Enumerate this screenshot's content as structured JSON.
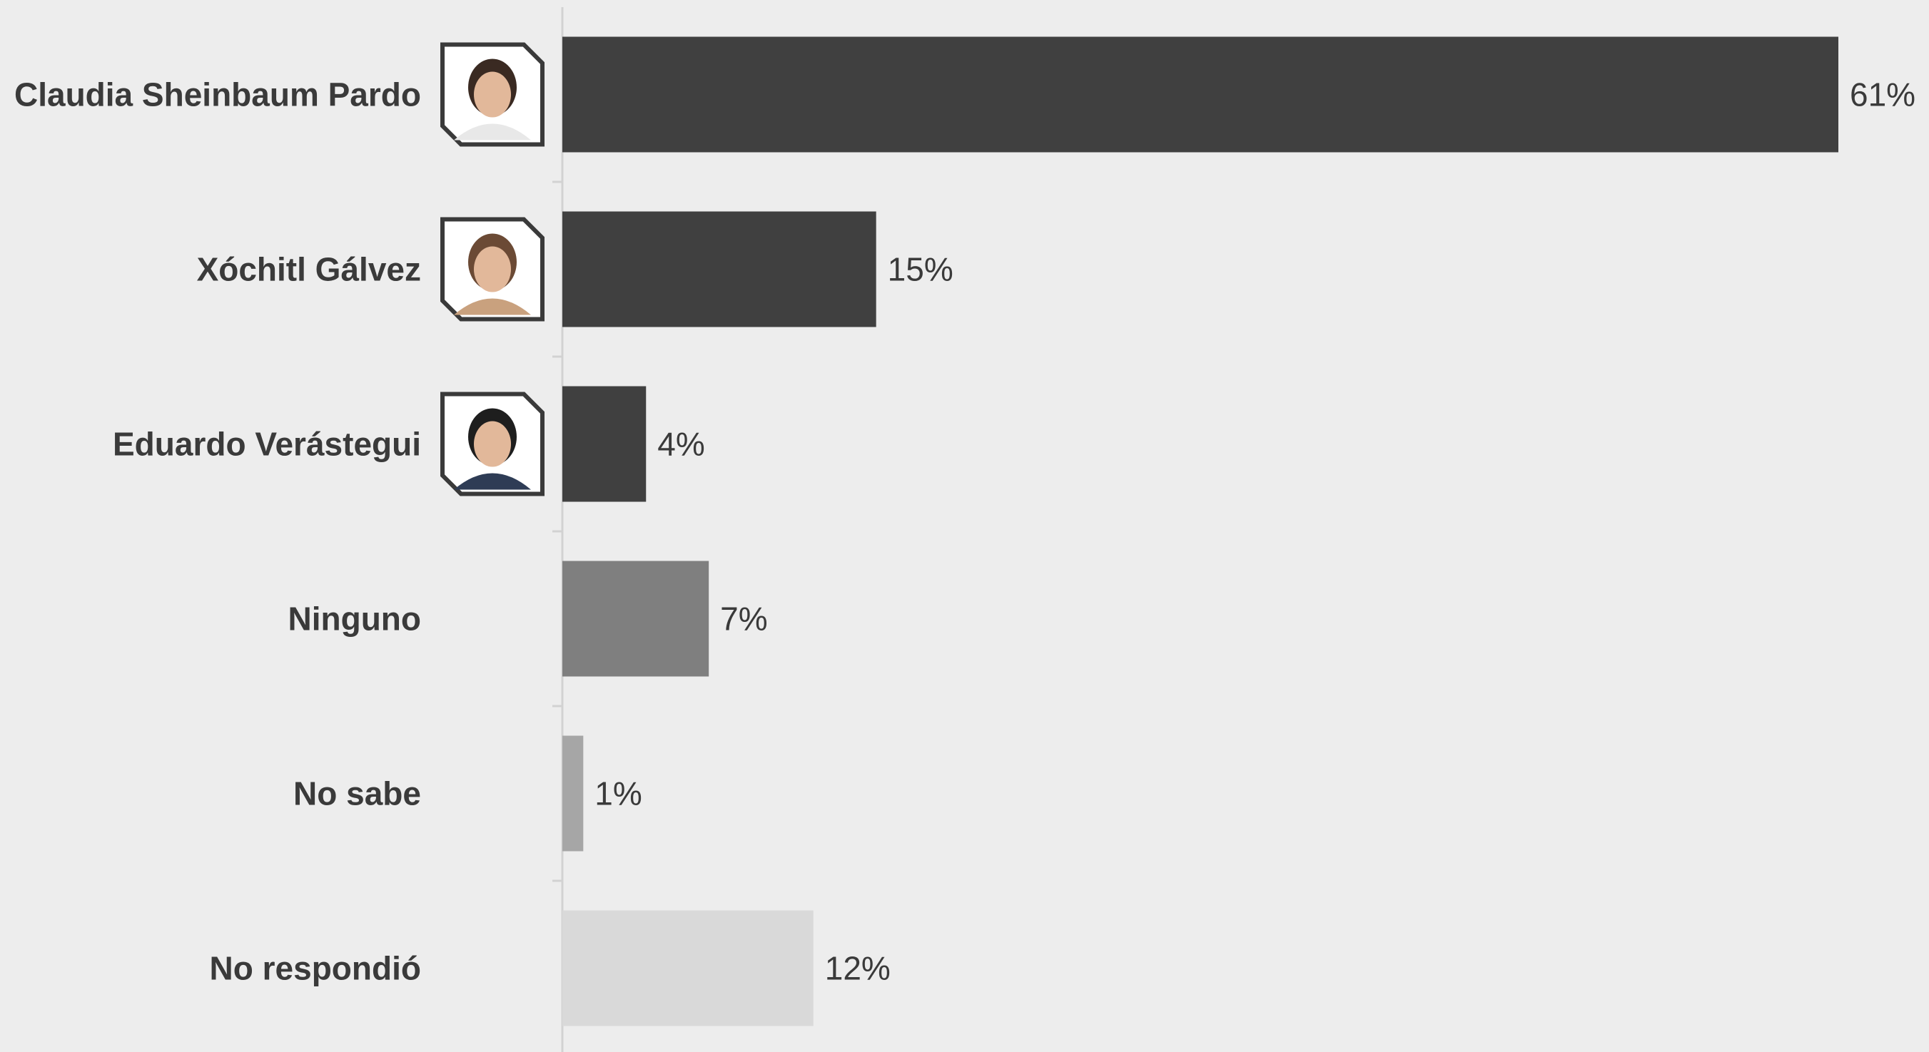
{
  "chart_data": {
    "type": "bar",
    "orientation": "horizontal",
    "categories": [
      "Claudia Sheinbaum Pardo",
      "Xóchitl Gálvez",
      "Eduardo Verástegui",
      "Ninguno",
      "No sabe",
      "No respondió"
    ],
    "values": [
      61,
      15,
      4,
      7,
      1,
      12
    ],
    "value_labels": [
      "61%",
      "15%",
      "4%",
      "7%",
      "1%",
      "12%"
    ],
    "bar_colors": [
      "#404040",
      "#404040",
      "#404040",
      "#7f7f7f",
      "#a6a6a6",
      "#d9d9d9"
    ],
    "category_icons": [
      "candidate-photo",
      "candidate-photo",
      "candidate-photo",
      "",
      "",
      ""
    ],
    "title": "",
    "xlabel": "",
    "ylabel": "",
    "xlim": [
      0,
      61
    ],
    "grid": false,
    "legend": "none"
  }
}
